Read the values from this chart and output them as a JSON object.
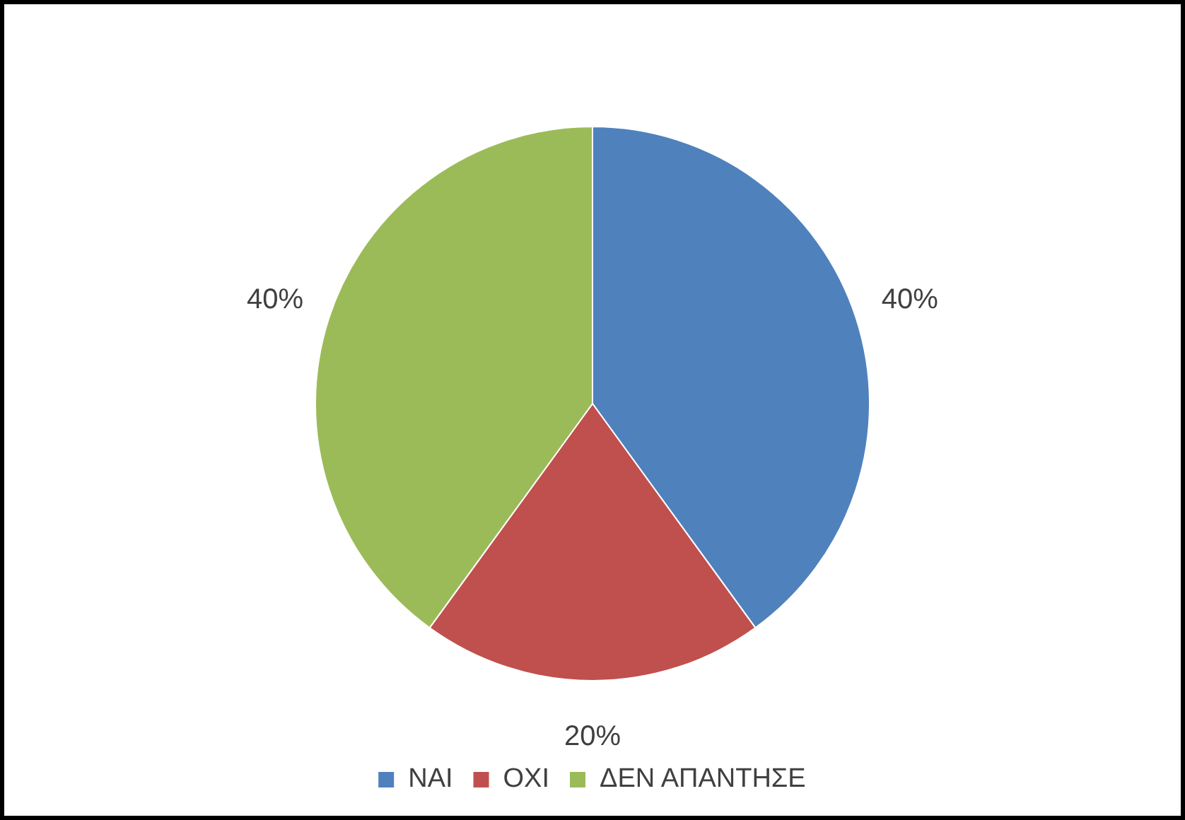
{
  "chart_data": {
    "type": "pie",
    "categories": [
      "ΝΑΙ",
      "ΟΧΙ",
      "ΔΕΝ ΑΠΑΝΤΗΣΕ"
    ],
    "values": [
      40,
      20,
      40
    ],
    "colors": [
      "#4f81bd",
      "#c0504d",
      "#9bbb59"
    ],
    "value_labels": [
      "40%",
      "20%",
      "40%"
    ],
    "legend": "bottom"
  }
}
